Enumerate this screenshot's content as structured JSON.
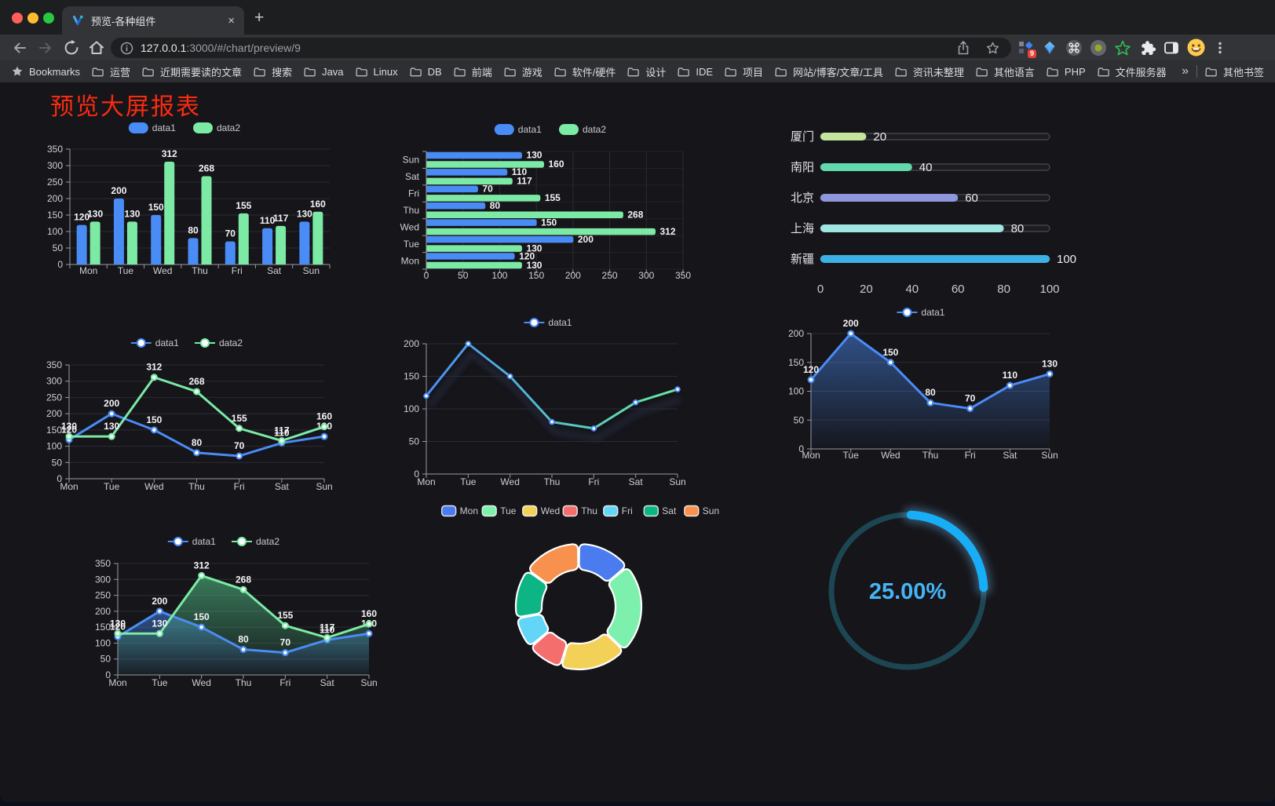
{
  "browser": {
    "tab": {
      "title": "预览-各种组件",
      "close": "×"
    },
    "new_tab": "+",
    "url_host": "127.0.0.1",
    "url_rest": ":3000/#/chart/preview/9",
    "ext_badge": "9",
    "bookmarks_label": "Bookmarks",
    "bookmarks": [
      "运营",
      "近期需要读的文章",
      "搜索",
      "Java",
      "Linux",
      "DB",
      "前端",
      "游戏",
      "软件/硬件",
      "设计",
      "IDE",
      "项目",
      "网站/博客/文章/工具",
      "资讯未整理",
      "其他语言",
      "PHP",
      "文件服务器"
    ],
    "overflow_chevron": "»",
    "other_bookmarks": "其他书签"
  },
  "page": {
    "title": "预览大屏报表",
    "title_color": "#fa2b10"
  },
  "palette": {
    "data1": "#4a8cf5",
    "data2": "#7ceaa5",
    "axis": "#9a9aa2",
    "grid": "#2c2c33",
    "tick_label": "#cfcfd4",
    "value_label": "#f5f5f7"
  },
  "chart_data": [
    {
      "id": "bar-vertical",
      "type": "bar",
      "categories": [
        "Mon",
        "Tue",
        "Wed",
        "Thu",
        "Fri",
        "Sat",
        "Sun"
      ],
      "series": [
        {
          "name": "data1",
          "values": [
            120,
            200,
            150,
            80,
            70,
            110,
            130
          ]
        },
        {
          "name": "data2",
          "values": [
            130,
            130,
            312,
            268,
            155,
            117,
            160
          ]
        }
      ],
      "ylim": [
        0,
        350
      ],
      "ystep": 50,
      "legend": [
        "data1",
        "data2"
      ],
      "legend_position": "top"
    },
    {
      "id": "bar-horizontal",
      "type": "bar",
      "orientation": "horizontal",
      "categories": [
        "Mon",
        "Tue",
        "Wed",
        "Thu",
        "Fri",
        "Sat",
        "Sun"
      ],
      "series": [
        {
          "name": "data1",
          "values": [
            120,
            200,
            150,
            80,
            70,
            110,
            130
          ]
        },
        {
          "name": "data2",
          "values": [
            130,
            130,
            312,
            268,
            155,
            117,
            160
          ]
        }
      ],
      "xlim": [
        0,
        350
      ],
      "xstep": 50,
      "legend": [
        "data1",
        "data2"
      ],
      "legend_position": "top"
    },
    {
      "id": "city-progress",
      "type": "bar",
      "orientation": "horizontal",
      "categories": [
        "厦门",
        "南阳",
        "北京",
        "上海",
        "新疆"
      ],
      "values": [
        20,
        40,
        60,
        80,
        100
      ],
      "colors": [
        "#c3e59e",
        "#62d9ad",
        "#8f96dc",
        "#9fe6e2",
        "#3eb1e4"
      ],
      "xlim": [
        0,
        100
      ],
      "xstep": 20
    },
    {
      "id": "line-two-series",
      "type": "line",
      "categories": [
        "Mon",
        "Tue",
        "Wed",
        "Thu",
        "Fri",
        "Sat",
        "Sun"
      ],
      "series": [
        {
          "name": "data1",
          "values": [
            120,
            200,
            150,
            80,
            70,
            110,
            130
          ]
        },
        {
          "name": "data2",
          "values": [
            130,
            130,
            312,
            268,
            155,
            117,
            160
          ]
        }
      ],
      "ylim": [
        0,
        350
      ],
      "ystep": 50,
      "legend": [
        "data1",
        "data2"
      ],
      "legend_position": "top",
      "labels": true
    },
    {
      "id": "line-gradient",
      "type": "line",
      "categories": [
        "Mon",
        "Tue",
        "Wed",
        "Thu",
        "Fri",
        "Sat",
        "Sun"
      ],
      "series": [
        {
          "name": "data1",
          "values": [
            120,
            200,
            150,
            80,
            70,
            110,
            130
          ]
        }
      ],
      "ylim": [
        0,
        200
      ],
      "ystep": 50,
      "legend": [
        "data1"
      ],
      "legend_position": "top",
      "labels": false
    },
    {
      "id": "area-single",
      "type": "area",
      "categories": [
        "Mon",
        "Tue",
        "Wed",
        "Thu",
        "Fri",
        "Sat",
        "Sun"
      ],
      "series": [
        {
          "name": "data1",
          "values": [
            120,
            200,
            150,
            80,
            70,
            110,
            130
          ]
        }
      ],
      "ylim": [
        0,
        200
      ],
      "ystep": 50,
      "legend": [
        "data1"
      ],
      "legend_position": "top",
      "labels": true
    },
    {
      "id": "area-two-series",
      "type": "area",
      "categories": [
        "Mon",
        "Tue",
        "Wed",
        "Thu",
        "Fri",
        "Sat",
        "Sun"
      ],
      "series": [
        {
          "name": "data1",
          "values": [
            120,
            200,
            150,
            80,
            70,
            110,
            130
          ]
        },
        {
          "name": "data2",
          "values": [
            130,
            130,
            312,
            268,
            155,
            117,
            160
          ]
        }
      ],
      "ylim": [
        0,
        350
      ],
      "ystep": 50,
      "legend": [
        "data1",
        "data2"
      ],
      "legend_position": "top",
      "labels": true
    },
    {
      "id": "donut",
      "type": "pie",
      "categories": [
        "Mon",
        "Tue",
        "Wed",
        "Thu",
        "Fri",
        "Sat",
        "Sun"
      ],
      "values": [
        120,
        200,
        150,
        80,
        70,
        110,
        130
      ],
      "colors": [
        "#4a7cf0",
        "#7df0ae",
        "#f3d158",
        "#f56e6e",
        "#63d6f8",
        "#0db585",
        "#f9914e"
      ],
      "legend_position": "top"
    },
    {
      "id": "gauge",
      "type": "gauge",
      "value": 25,
      "max": 100,
      "label": "25.00%",
      "arc_color": "#17aef7",
      "track_color": "#1d4653",
      "text_color": "#47b4f4"
    }
  ]
}
